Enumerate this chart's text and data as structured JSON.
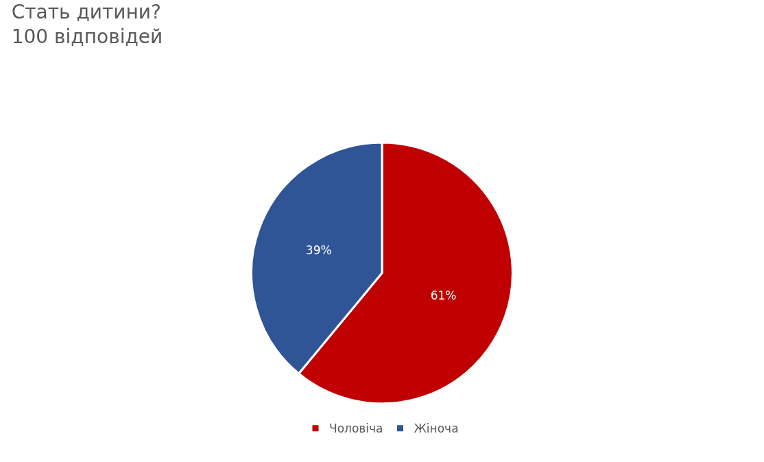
{
  "chart_data": {
    "type": "pie",
    "title": "Стать дитини?",
    "subtitle": "100 відповідей",
    "categories": [
      "Чоловіча",
      "Жіноча"
    ],
    "values": [
      61,
      39
    ],
    "colors": [
      "#c00000",
      "#2f5597"
    ],
    "value_labels": [
      "61%",
      "39%"
    ],
    "legend": "bottom"
  }
}
